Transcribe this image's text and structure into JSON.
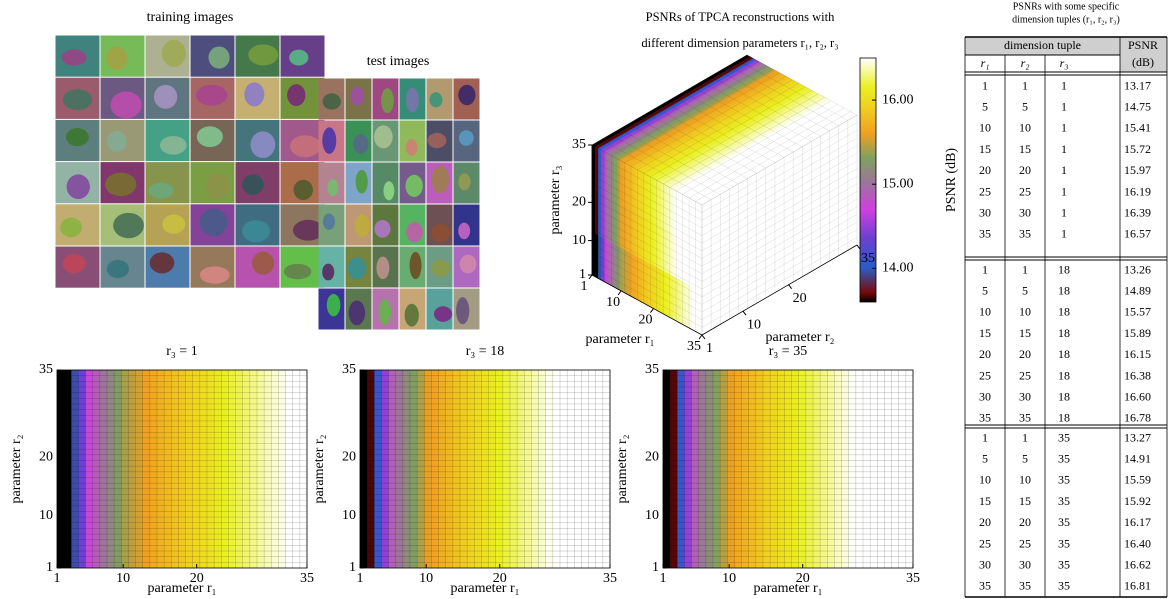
{
  "figure": {
    "training_title": "training images",
    "test_title": "test images"
  },
  "chart_data": [
    {
      "type": "voxel3d",
      "title": [
        "PSNRs of TPCA reconstructions with",
        "different dimension parameters r₁, r₂, r₃"
      ],
      "xlabel": "parameter r₁",
      "ylabel": "parameter r₂",
      "zlabel": "parameter r₃",
      "xlim": [
        1,
        35
      ],
      "ylim": [
        1,
        35
      ],
      "zlim": [
        1,
        35
      ],
      "xticks": [
        1,
        10,
        20,
        35
      ],
      "yticks": [
        1,
        10,
        20,
        35
      ],
      "zticks": [
        1,
        10,
        20,
        35
      ],
      "colorbar": {
        "label": "PSNR (dB)",
        "clim": [
          13.6,
          16.5
        ],
        "ticks": [
          {
            "value": 14,
            "label": "14.00"
          },
          {
            "value": 15,
            "label": "15.00"
          },
          {
            "value": 16,
            "label": "16.00"
          }
        ]
      }
    },
    {
      "type": "heatmap",
      "title": "r₃ = 1",
      "xlabel": "parameter r₁",
      "ylabel": "parameter r₂",
      "xlim": [
        1,
        35
      ],
      "ylim": [
        1,
        35
      ],
      "xticks": [
        1,
        10,
        20,
        35
      ],
      "yticks": [
        1,
        10,
        20,
        35
      ],
      "values": [
        13.17,
        13.57,
        13.96,
        14.36,
        14.75,
        14.88,
        15.01,
        15.15,
        15.28,
        15.41,
        15.47,
        15.53,
        15.6,
        15.66,
        15.72,
        15.77,
        15.82,
        15.87,
        15.92,
        15.97,
        16.01,
        16.06,
        16.1,
        16.15,
        16.19,
        16.23,
        16.27,
        16.31,
        16.35,
        16.39,
        16.43,
        16.46,
        16.5,
        16.53,
        16.57
      ]
    },
    {
      "type": "heatmap",
      "title": "r₃ = 18",
      "xlabel": "parameter r₁",
      "ylabel": "parameter r₂",
      "xlim": [
        1,
        35
      ],
      "ylim": [
        1,
        35
      ],
      "xticks": [
        1,
        10,
        20,
        35
      ],
      "yticks": [
        1,
        10,
        20,
        35
      ],
      "values": [
        13.26,
        13.67,
        14.08,
        14.48,
        14.89,
        15.03,
        15.16,
        15.3,
        15.43,
        15.57,
        15.63,
        15.7,
        15.76,
        15.83,
        15.89,
        15.94,
        15.99,
        16.05,
        16.1,
        16.15,
        16.2,
        16.24,
        16.29,
        16.33,
        16.38,
        16.42,
        16.47,
        16.51,
        16.56,
        16.6,
        16.64,
        16.67,
        16.71,
        16.74,
        16.78
      ]
    },
    {
      "type": "heatmap",
      "title": "r₃ = 35",
      "xlabel": "parameter r₁",
      "ylabel": "parameter r₂",
      "xlim": [
        1,
        35
      ],
      "ylim": [
        1,
        35
      ],
      "xticks": [
        1,
        10,
        20,
        35
      ],
      "yticks": [
        1,
        10,
        20,
        35
      ],
      "values": [
        13.27,
        13.68,
        14.09,
        14.5,
        14.91,
        15.05,
        15.18,
        15.32,
        15.45,
        15.59,
        15.66,
        15.72,
        15.79,
        15.85,
        15.92,
        15.97,
        16.02,
        16.07,
        16.12,
        16.17,
        16.22,
        16.26,
        16.31,
        16.35,
        16.4,
        16.44,
        16.49,
        16.53,
        16.58,
        16.62,
        16.66,
        16.7,
        16.73,
        16.77,
        16.81
      ]
    }
  ],
  "table": {
    "title": [
      "PSNRs with some specific",
      "dimension tuples (r₁, r₂, r₃)"
    ],
    "header": {
      "group": "dimension tuple",
      "psnr": [
        "PSNR",
        "(dB)"
      ],
      "columns": [
        "r₁",
        "r₂",
        "r₃"
      ]
    },
    "groups": [
      [
        [
          "1",
          "1",
          "1",
          "13.17"
        ],
        [
          "5",
          "5",
          "1",
          "14.75"
        ],
        [
          "10",
          "10",
          "1",
          "15.41"
        ],
        [
          "15",
          "15",
          "1",
          "15.72"
        ],
        [
          "20",
          "20",
          "1",
          "15.97"
        ],
        [
          "25",
          "25",
          "1",
          "16.19"
        ],
        [
          "30",
          "30",
          "1",
          "16.39"
        ],
        [
          "35",
          "35",
          "1",
          "16.57"
        ]
      ],
      [
        [
          "1",
          "1",
          "18",
          "13.26"
        ],
        [
          "5",
          "5",
          "18",
          "14.89"
        ],
        [
          "10",
          "10",
          "18",
          "15.57"
        ],
        [
          "15",
          "15",
          "18",
          "15.89"
        ],
        [
          "20",
          "20",
          "18",
          "16.15"
        ],
        [
          "25",
          "25",
          "18",
          "16.38"
        ],
        [
          "30",
          "30",
          "18",
          "16.60"
        ],
        [
          "35",
          "35",
          "18",
          "16.78"
        ]
      ],
      [
        [
          "1",
          "1",
          "35",
          "13.27"
        ],
        [
          "5",
          "5",
          "35",
          "14.91"
        ],
        [
          "10",
          "10",
          "35",
          "15.59"
        ],
        [
          "15",
          "15",
          "35",
          "15.92"
        ],
        [
          "20",
          "20",
          "35",
          "16.17"
        ],
        [
          "25",
          "25",
          "35",
          "16.40"
        ],
        [
          "30",
          "30",
          "35",
          "16.62"
        ],
        [
          "35",
          "35",
          "35",
          "16.81"
        ]
      ]
    ]
  }
}
